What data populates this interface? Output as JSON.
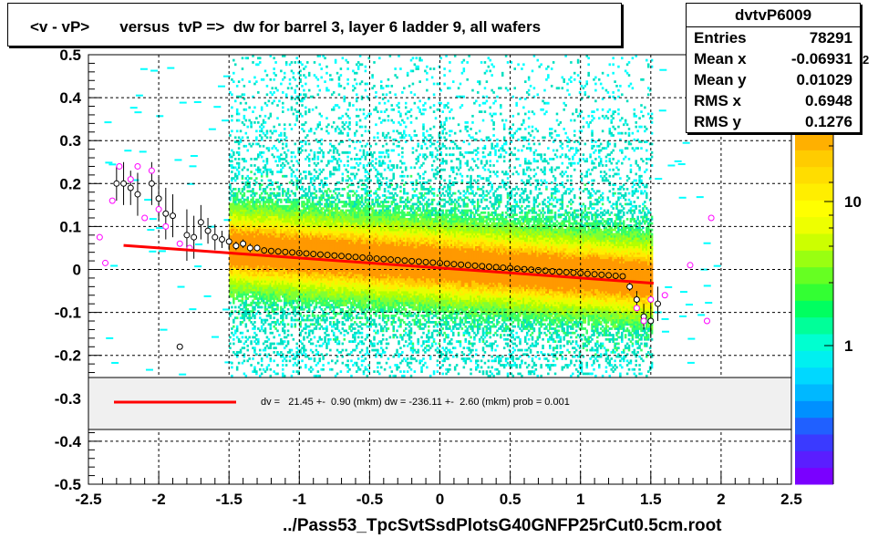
{
  "title": "<v - vP>       versus  tvP =>  dw for barrel 3, layer 6 ladder 9, all wafers",
  "stats": {
    "name": "dvtvP6009",
    "rows": [
      {
        "label": "Entries",
        "value": "78291"
      },
      {
        "label": "Mean x",
        "value": "-0.06931"
      },
      {
        "label": "Mean y",
        "value": "0.01029"
      },
      {
        "label": "RMS x",
        "value": "0.6948"
      },
      {
        "label": "RMS y",
        "value": "0.1276"
      }
    ]
  },
  "fit_legend": "dv =   21.45 +-  0.90 (mkm) dw = -236.11 +-  2.60 (mkm) prob = 0.001",
  "footer": "../Pass53_TpcSvtSsdPlotsG40GNFP25rCut0.5cm.root",
  "colors": {
    "fit_line": "#ff0000",
    "legend_bg": "#f0f0f0"
  },
  "chart_data": {
    "type": "heatmap",
    "xlim": [
      -2.5,
      2.5
    ],
    "ylim": [
      -0.5,
      0.5
    ],
    "x_ticks": [
      "-2.5",
      "-2",
      "-1.5",
      "-1",
      "-0.5",
      "0",
      "0.5",
      "1",
      "1.5",
      "2",
      "2.5"
    ],
    "y_ticks": [
      "-0.5",
      "-0.4",
      "-0.3",
      "-0.2",
      "-0.1",
      "0",
      "0.1",
      "0.2",
      "0.3",
      "0.4",
      "0.5"
    ],
    "grid": true,
    "colorbar": {
      "labels": [
        "1",
        "10"
      ],
      "scale": "log",
      "clipped_top_label": "2"
    },
    "density_model": {
      "x_range": [
        -1.5,
        1.5
      ],
      "slope": -0.0236,
      "intercept": 0.0107
    },
    "fit_line": {
      "x": [
        -2.25,
        1.52
      ],
      "y": [
        0.056,
        -0.032
      ]
    },
    "profile_black": [
      {
        "x": -2.3,
        "y": 0.2,
        "e": 0.04
      },
      {
        "x": -2.25,
        "y": 0.2,
        "e": 0.05
      },
      {
        "x": -2.2,
        "y": 0.19,
        "e": 0.04
      },
      {
        "x": -2.15,
        "y": 0.175,
        "e": 0.05
      },
      {
        "x": -2.05,
        "y": 0.2,
        "e": 0.05
      },
      {
        "x": -2.0,
        "y": 0.165,
        "e": 0.05
      },
      {
        "x": -1.95,
        "y": 0.13,
        "e": 0.06
      },
      {
        "x": -1.9,
        "y": 0.125,
        "e": 0.05
      },
      {
        "x": -1.85,
        "y": -0.18,
        "e": 0.0
      },
      {
        "x": -1.8,
        "y": 0.08,
        "e": 0.06
      },
      {
        "x": -1.75,
        "y": 0.075,
        "e": 0.05
      },
      {
        "x": -1.7,
        "y": 0.11,
        "e": 0.04
      },
      {
        "x": -1.65,
        "y": 0.09,
        "e": 0.03
      },
      {
        "x": -1.6,
        "y": 0.075,
        "e": 0.03
      },
      {
        "x": -1.55,
        "y": 0.07,
        "e": 0.02
      },
      {
        "x": -1.5,
        "y": 0.065,
        "e": 0.02
      },
      {
        "x": -1.45,
        "y": 0.055,
        "e": 0.01
      },
      {
        "x": -1.4,
        "y": 0.06,
        "e": 0.01
      },
      {
        "x": -1.35,
        "y": 0.05,
        "e": 0.01
      },
      {
        "x": -1.3,
        "y": 0.05,
        "e": 0.008
      },
      {
        "x": 1.35,
        "y": -0.04,
        "e": 0.01
      },
      {
        "x": 1.4,
        "y": -0.07,
        "e": 0.02
      },
      {
        "x": 1.45,
        "y": -0.11,
        "e": 0.03
      },
      {
        "x": 1.5,
        "y": -0.12,
        "e": 0.04
      },
      {
        "x": 1.55,
        "y": -0.08,
        "e": 0.04
      }
    ],
    "profile_magenta": [
      {
        "x": -2.42,
        "y": 0.075
      },
      {
        "x": -2.38,
        "y": 0.015
      },
      {
        "x": -2.33,
        "y": 0.16
      },
      {
        "x": -2.28,
        "y": 0.24
      },
      {
        "x": -2.2,
        "y": 0.21
      },
      {
        "x": -2.15,
        "y": 0.24
      },
      {
        "x": -2.1,
        "y": 0.12
      },
      {
        "x": -2.05,
        "y": 0.23
      },
      {
        "x": -2.0,
        "y": 0.14
      },
      {
        "x": -1.95,
        "y": 0.1
      },
      {
        "x": -1.85,
        "y": 0.06
      },
      {
        "x": -1.78,
        "y": 0.05
      },
      {
        "x": 1.4,
        "y": -0.09
      },
      {
        "x": 1.45,
        "y": -0.12
      },
      {
        "x": 1.5,
        "y": -0.07
      },
      {
        "x": 1.6,
        "y": -0.06
      },
      {
        "x": 1.78,
        "y": 0.01
      },
      {
        "x": 1.9,
        "y": -0.12
      },
      {
        "x": 1.93,
        "y": 0.12
      }
    ]
  }
}
